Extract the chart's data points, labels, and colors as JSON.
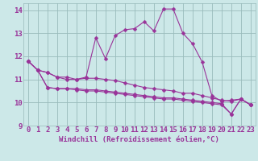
{
  "title": "",
  "xlabel": "Windchill (Refroidissement éolien,°C)",
  "bg_color": "#cce8e8",
  "line_color": "#993399",
  "grid_color": "#99bbbb",
  "x_values": [
    0,
    1,
    2,
    3,
    4,
    5,
    6,
    7,
    8,
    9,
    10,
    11,
    12,
    13,
    14,
    15,
    16,
    17,
    18,
    19,
    20,
    21,
    22,
    23
  ],
  "series": [
    [
      11.8,
      11.4,
      11.3,
      11.1,
      11.1,
      11.0,
      11.1,
      12.8,
      11.9,
      12.9,
      13.15,
      13.2,
      13.5,
      13.1,
      14.05,
      14.05,
      13.0,
      12.55,
      11.75,
      10.3,
      10.05,
      10.1,
      10.15,
      9.9
    ],
    [
      11.8,
      11.4,
      11.3,
      11.1,
      11.0,
      11.0,
      11.05,
      11.05,
      11.0,
      10.95,
      10.85,
      10.75,
      10.65,
      10.6,
      10.55,
      10.5,
      10.4,
      10.4,
      10.3,
      10.2,
      10.1,
      10.05,
      10.15,
      9.9
    ],
    [
      11.8,
      11.4,
      10.65,
      10.6,
      10.6,
      10.6,
      10.55,
      10.55,
      10.5,
      10.45,
      10.4,
      10.35,
      10.3,
      10.25,
      10.2,
      10.2,
      10.15,
      10.1,
      10.05,
      10.0,
      9.95,
      9.5,
      10.15,
      9.9
    ],
    [
      11.8,
      11.4,
      10.65,
      10.6,
      10.6,
      10.55,
      10.5,
      10.5,
      10.45,
      10.4,
      10.35,
      10.3,
      10.25,
      10.2,
      10.15,
      10.15,
      10.1,
      10.05,
      10.0,
      9.95,
      9.9,
      9.5,
      10.15,
      9.9
    ]
  ],
  "ylim": [
    9.0,
    14.3
  ],
  "yticks": [
    9,
    10,
    11,
    12,
    13,
    14
  ],
  "xticks": [
    0,
    1,
    2,
    3,
    4,
    5,
    6,
    7,
    8,
    9,
    10,
    11,
    12,
    13,
    14,
    15,
    16,
    17,
    18,
    19,
    20,
    21,
    22,
    23
  ],
  "markersize": 2.5,
  "linewidth": 0.8,
  "xlabel_fontsize": 6.5,
  "tick_fontsize": 6.5,
  "tick_color": "#993399"
}
